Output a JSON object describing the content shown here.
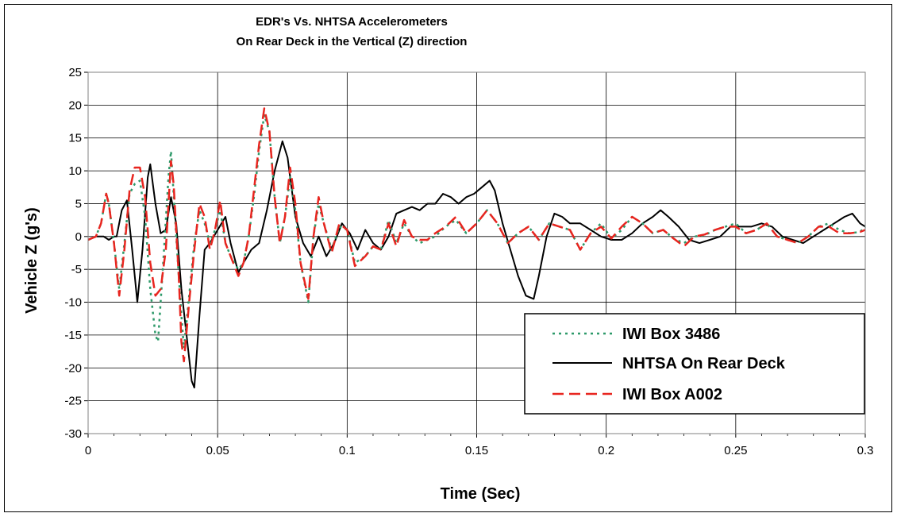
{
  "chart_data": {
    "type": "line",
    "title": "EDR's Vs. NHTSA Accelerometers",
    "subtitle": "On Rear Deck in the Vertical (Z) direction",
    "xlabel": "Time (Sec)",
    "ylabel": "Vehicle Z (g's)",
    "xlim": [
      0,
      0.3
    ],
    "ylim": [
      -30,
      25
    ],
    "x_ticks": [
      0,
      0.05,
      0.1,
      0.15,
      0.2,
      0.25,
      0.3
    ],
    "x_tick_labels": [
      "0",
      "0.05",
      "0.1",
      "0.15",
      "0.2",
      "0.25",
      "0.3"
    ],
    "y_ticks": [
      25,
      20,
      15,
      10,
      5,
      0,
      -5,
      -10,
      -15,
      -20,
      -25,
      -30
    ],
    "y_tick_labels": [
      "25",
      "20",
      "15",
      "10",
      "5",
      "0",
      "-5",
      "-10",
      "-15",
      "-20",
      "-25",
      "-30"
    ],
    "grid": true,
    "legend_position": "bottom-right",
    "series": [
      {
        "name": "IWI Box 3486",
        "color": "#2e9a6a",
        "style": "dotted",
        "x": [
          0,
          0.003,
          0.005,
          0.007,
          0.008,
          0.01,
          0.012,
          0.014,
          0.016,
          0.018,
          0.02,
          0.022,
          0.024,
          0.026,
          0.027,
          0.029,
          0.031,
          0.032,
          0.034,
          0.036,
          0.037,
          0.039,
          0.041,
          0.043,
          0.045,
          0.047,
          0.049,
          0.051,
          0.053,
          0.055,
          0.058,
          0.06,
          0.062,
          0.064,
          0.066,
          0.068,
          0.07,
          0.072,
          0.074,
          0.076,
          0.078,
          0.08,
          0.082,
          0.085,
          0.087,
          0.089,
          0.091,
          0.094,
          0.097,
          0.1,
          0.103,
          0.107,
          0.11,
          0.113,
          0.116,
          0.119,
          0.122,
          0.125,
          0.128,
          0.131,
          0.134,
          0.138,
          0.142,
          0.146,
          0.15,
          0.154,
          0.158,
          0.162,
          0.166,
          0.17,
          0.174,
          0.178,
          0.182,
          0.186,
          0.19,
          0.194,
          0.198,
          0.202,
          0.206,
          0.21,
          0.214,
          0.218,
          0.222,
          0.226,
          0.23,
          0.234,
          0.238,
          0.242,
          0.246,
          0.25,
          0.254,
          0.258,
          0.262,
          0.266,
          0.27,
          0.274,
          0.278,
          0.282,
          0.286,
          0.29,
          0.294,
          0.298,
          0.3
        ],
        "y": [
          -0.5,
          0,
          2,
          6.5,
          5,
          -1,
          -8,
          -1,
          6.5,
          8,
          8.5,
          3,
          -8,
          -15,
          -16,
          -4,
          9,
          13,
          0,
          -12,
          -17,
          -9,
          -1,
          4,
          2,
          -1,
          1,
          4,
          -1,
          -3,
          -5,
          -4,
          0,
          6,
          13,
          18.5,
          16,
          6,
          -1,
          3,
          9,
          4,
          -4,
          -10,
          0,
          5,
          2,
          -2,
          1.5,
          1,
          -4,
          -3,
          -1.5,
          -2,
          2.5,
          -1,
          2,
          0,
          -1,
          -0.5,
          0,
          1.5,
          2.5,
          0.5,
          2,
          4,
          2,
          -1,
          0.5,
          1.5,
          -0.5,
          2,
          1.5,
          1,
          -2,
          0.5,
          2,
          -0.3,
          1,
          3,
          2,
          0.5,
          1,
          -0.3,
          -1,
          0,
          0.2,
          1,
          1.5,
          2,
          0.5,
          1,
          2,
          0,
          -0.5,
          -1,
          0,
          1.5,
          2,
          1,
          0.5,
          0.7,
          1.5
        ]
      },
      {
        "name": "NHTSA On Rear Deck",
        "color": "#000000",
        "style": "solid",
        "x": [
          0,
          0.003,
          0.006,
          0.008,
          0.01,
          0.011,
          0.013,
          0.015,
          0.017,
          0.019,
          0.021,
          0.023,
          0.024,
          0.026,
          0.028,
          0.03,
          0.032,
          0.034,
          0.036,
          0.038,
          0.04,
          0.041,
          0.043,
          0.045,
          0.047,
          0.05,
          0.053,
          0.055,
          0.058,
          0.06,
          0.063,
          0.066,
          0.069,
          0.072,
          0.075,
          0.077,
          0.08,
          0.083,
          0.086,
          0.089,
          0.092,
          0.095,
          0.098,
          0.101,
          0.104,
          0.107,
          0.11,
          0.113,
          0.116,
          0.119,
          0.122,
          0.125,
          0.128,
          0.131,
          0.134,
          0.137,
          0.14,
          0.143,
          0.146,
          0.149,
          0.152,
          0.155,
          0.157,
          0.16,
          0.163,
          0.166,
          0.169,
          0.172,
          0.174,
          0.177,
          0.18,
          0.183,
          0.186,
          0.19,
          0.194,
          0.198,
          0.202,
          0.206,
          0.21,
          0.214,
          0.218,
          0.221,
          0.224,
          0.228,
          0.232,
          0.236,
          0.24,
          0.244,
          0.248,
          0.252,
          0.256,
          0.26,
          0.264,
          0.268,
          0.272,
          0.276,
          0.28,
          0.284,
          0.288,
          0.292,
          0.295,
          0.298,
          0.3
        ],
        "y": [
          -0.5,
          0,
          0,
          -0.5,
          0,
          0,
          4,
          5.5,
          -2,
          -10,
          -2,
          9,
          11,
          5,
          0.5,
          1,
          6,
          2,
          -8,
          -15,
          -22,
          -23,
          -12,
          -2,
          -1,
          1,
          3,
          -1,
          -5.5,
          -4,
          -2,
          -1,
          4,
          10,
          14.5,
          12,
          3,
          -1,
          -3,
          0,
          -3,
          -1,
          2,
          0.5,
          -2,
          1,
          -1,
          -2,
          0,
          3.5,
          4,
          4.5,
          4,
          5,
          5,
          6.5,
          6,
          5,
          6,
          6.5,
          7.5,
          8.5,
          7,
          2,
          -2,
          -6,
          -9,
          -9.5,
          -6,
          0,
          3.5,
          3,
          2,
          2,
          1,
          0,
          -0.5,
          -0.5,
          0.5,
          2,
          3,
          4,
          3,
          1.5,
          -0.5,
          -1,
          -0.5,
          0,
          1.5,
          1.5,
          1.5,
          2,
          1.5,
          0,
          -0.5,
          -1,
          0,
          1,
          2,
          3,
          3.5,
          2,
          1.5
        ]
      },
      {
        "name": "IWI Box A002",
        "color": "#e8251f",
        "style": "dashed",
        "x": [
          0,
          0.003,
          0.005,
          0.007,
          0.008,
          0.01,
          0.012,
          0.014,
          0.016,
          0.018,
          0.02,
          0.022,
          0.024,
          0.026,
          0.028,
          0.03,
          0.032,
          0.033,
          0.035,
          0.036,
          0.037,
          0.039,
          0.041,
          0.043,
          0.045,
          0.047,
          0.049,
          0.051,
          0.053,
          0.055,
          0.058,
          0.06,
          0.062,
          0.064,
          0.066,
          0.068,
          0.07,
          0.072,
          0.074,
          0.076,
          0.078,
          0.08,
          0.082,
          0.085,
          0.087,
          0.089,
          0.091,
          0.094,
          0.097,
          0.1,
          0.103,
          0.107,
          0.11,
          0.113,
          0.116,
          0.119,
          0.122,
          0.125,
          0.128,
          0.131,
          0.134,
          0.138,
          0.142,
          0.146,
          0.15,
          0.154,
          0.158,
          0.162,
          0.166,
          0.17,
          0.174,
          0.178,
          0.182,
          0.186,
          0.19,
          0.194,
          0.198,
          0.202,
          0.206,
          0.21,
          0.214,
          0.218,
          0.222,
          0.226,
          0.23,
          0.234,
          0.238,
          0.242,
          0.246,
          0.25,
          0.254,
          0.258,
          0.262,
          0.266,
          0.27,
          0.274,
          0.278,
          0.282,
          0.286,
          0.29,
          0.294,
          0.298,
          0.3
        ],
        "y": [
          -0.5,
          0,
          2,
          6.5,
          5,
          -1,
          -9,
          -2,
          7,
          10.5,
          10.5,
          6,
          -4,
          -9,
          -8,
          -2,
          11.5,
          8,
          -6,
          -16,
          -19,
          -10,
          -2,
          5,
          3,
          -2,
          1,
          5.5,
          -1,
          -3,
          -6,
          -4,
          0,
          7,
          14,
          19.5,
          16,
          6,
          -1,
          3,
          10.5,
          5,
          -4,
          -9.5,
          0,
          6,
          2,
          -2.5,
          2,
          1,
          -4.5,
          -3,
          -1.5,
          -2,
          2,
          -1.5,
          2.5,
          0,
          -0.5,
          -0.5,
          0.5,
          1.5,
          3,
          0.5,
          2,
          4,
          2,
          -1,
          0.5,
          1.5,
          -0.5,
          2,
          1.5,
          1,
          -2,
          0.5,
          1.5,
          -0.3,
          1.5,
          3,
          2,
          0.5,
          1,
          -0.3,
          -1.5,
          0,
          0.3,
          1,
          1.5,
          1.5,
          0.5,
          1,
          2,
          0,
          -0.5,
          -1,
          0,
          1.5,
          1.5,
          0.5,
          0.5,
          0.7,
          1
        ]
      }
    ]
  }
}
